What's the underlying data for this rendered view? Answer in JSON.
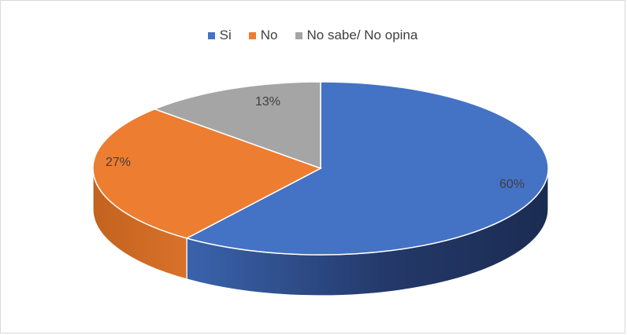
{
  "chart_data": {
    "type": "pie",
    "categories": [
      "Si",
      "No",
      "No sabe/ No opina"
    ],
    "values": [
      60,
      27,
      13
    ],
    "data_labels": [
      "60%",
      "27%",
      "13%"
    ],
    "colors": [
      "#4472c4",
      "#ed7d31",
      "#a5a5a5"
    ],
    "legend": [
      "Si",
      "No",
      "No sabe/ No opina"
    ],
    "legend_placement": "top",
    "style": "3d-pie"
  }
}
